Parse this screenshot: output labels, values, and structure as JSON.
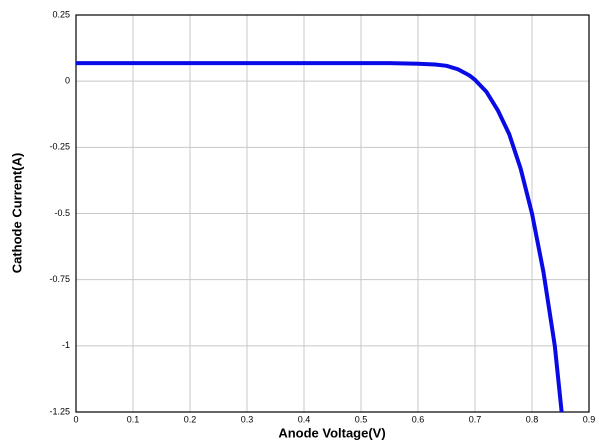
{
  "chart_data": {
    "type": "line",
    "x_label": "Anode Voltage(V)",
    "y_label": "Cathode Current(A)",
    "x": [
      0,
      0.1,
      0.2,
      0.3,
      0.4,
      0.5,
      0.55,
      0.6,
      0.63,
      0.65,
      0.67,
      0.69,
      0.7,
      0.72,
      0.74,
      0.76,
      0.78,
      0.8,
      0.82,
      0.84,
      0.852
    ],
    "series": [
      {
        "name": "Cathode Current",
        "color": "#0a0ae6",
        "values": [
          0.068,
          0.068,
          0.068,
          0.068,
          0.068,
          0.068,
          0.068,
          0.066,
          0.063,
          0.058,
          0.045,
          0.022,
          0.005,
          -0.04,
          -0.11,
          -0.2,
          -0.33,
          -0.5,
          -0.72,
          -1.0,
          -1.25
        ]
      }
    ],
    "xlim": [
      0,
      0.9
    ],
    "xticks": [
      0,
      0.1,
      0.2,
      0.3,
      0.4,
      0.5,
      0.6,
      0.7,
      0.8,
      0.9
    ],
    "ylim": [
      -1.25,
      0.25
    ],
    "yticks": [
      0.25,
      0,
      -0.25,
      -0.5,
      -0.75,
      -1,
      -1.25
    ],
    "grid": true
  }
}
